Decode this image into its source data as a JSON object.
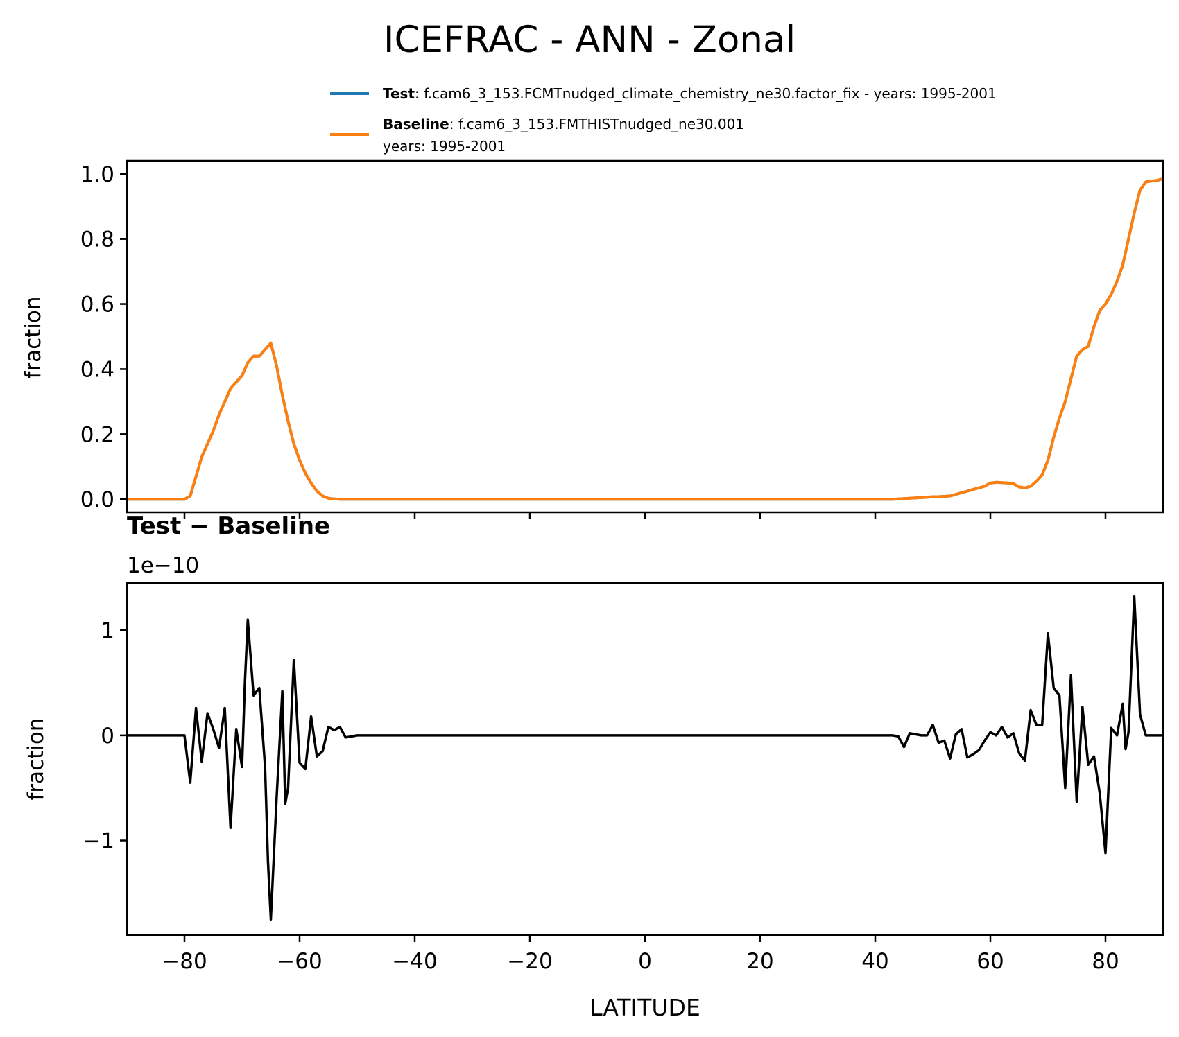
{
  "figure": {
    "title": "ICEFRAC - ANN - Zonal"
  },
  "legend": {
    "entries": [
      {
        "label_bold": "Test",
        "label_text": ": f.cam6_3_153.FCMTnudged_climate_chemistry_ne30.factor_fix - years: 1995-2001",
        "label_text2": "",
        "color": "#1f77b4"
      },
      {
        "label_bold": "Baseline",
        "label_text": ": f.cam6_3_153.FMTHISTnudged_ne30.001",
        "label_text2": "years: 1995-2001",
        "color": "#ff7f0e"
      }
    ]
  },
  "chart_data": [
    {
      "type": "line",
      "ylabel": "fraction",
      "xlabel": "",
      "xlim": [
        -90,
        90
      ],
      "ylim": [
        -0.04,
        1.04
      ],
      "xticks": [
        -80,
        -60,
        -40,
        -20,
        0,
        20,
        40,
        60,
        80
      ],
      "yticks": [
        0.0,
        0.2,
        0.4,
        0.6,
        0.8,
        1.0
      ],
      "ytick_labels": [
        "0.0",
        "0.2",
        "0.4",
        "0.6",
        "0.8",
        "1.0"
      ],
      "series": [
        {
          "name": "Test",
          "color": "#1f77b4",
          "x": [
            -90,
            -85,
            -80,
            -79,
            -78,
            -77,
            -76,
            -75,
            -74,
            -73,
            -72,
            -71,
            -70,
            -69,
            -68,
            -67,
            -66,
            -65.5,
            -65,
            -64,
            -63,
            -62,
            -61,
            -60,
            -59,
            -58,
            -57,
            -56,
            -55,
            -54,
            -53,
            -50,
            -40,
            -30,
            -20,
            -10,
            0,
            10,
            20,
            30,
            40,
            43,
            45,
            47,
            49,
            50,
            51,
            52,
            53,
            54,
            55,
            56,
            57,
            58,
            59,
            60,
            61,
            62,
            63,
            64,
            65,
            66,
            67,
            68,
            69,
            70,
            71,
            72,
            73,
            74,
            75,
            76,
            77,
            78,
            79,
            80,
            81,
            82,
            83,
            84,
            85,
            86,
            87,
            88,
            89,
            90
          ],
          "values": [
            0,
            0,
            0,
            0.01,
            0.07,
            0.13,
            0.17,
            0.21,
            0.26,
            0.3,
            0.34,
            0.36,
            0.38,
            0.42,
            0.44,
            0.44,
            0.46,
            0.47,
            0.48,
            0.41,
            0.32,
            0.24,
            0.17,
            0.12,
            0.08,
            0.05,
            0.025,
            0.01,
            0.003,
            0.001,
            0,
            0,
            0,
            0,
            0,
            0,
            0,
            0,
            0,
            0,
            0,
            0,
            0.002,
            0.004,
            0.006,
            0.008,
            0.008,
            0.009,
            0.01,
            0.015,
            0.02,
            0.025,
            0.03,
            0.035,
            0.04,
            0.05,
            0.052,
            0.051,
            0.05,
            0.048,
            0.038,
            0.035,
            0.04,
            0.055,
            0.075,
            0.12,
            0.19,
            0.25,
            0.3,
            0.37,
            0.44,
            0.46,
            0.47,
            0.53,
            0.58,
            0.6,
            0.63,
            0.67,
            0.72,
            0.8,
            0.88,
            0.95,
            0.975,
            0.978,
            0.98,
            0.985
          ]
        },
        {
          "name": "Baseline",
          "color": "#ff7f0e",
          "x": [
            -90,
            -85,
            -80,
            -79,
            -78,
            -77,
            -76,
            -75,
            -74,
            -73,
            -72,
            -71,
            -70,
            -69,
            -68,
            -67,
            -66,
            -65.5,
            -65,
            -64,
            -63,
            -62,
            -61,
            -60,
            -59,
            -58,
            -57,
            -56,
            -55,
            -54,
            -53,
            -50,
            -40,
            -30,
            -20,
            -10,
            0,
            10,
            20,
            30,
            40,
            43,
            45,
            47,
            49,
            50,
            51,
            52,
            53,
            54,
            55,
            56,
            57,
            58,
            59,
            60,
            61,
            62,
            63,
            64,
            65,
            66,
            67,
            68,
            69,
            70,
            71,
            72,
            73,
            74,
            75,
            76,
            77,
            78,
            79,
            80,
            81,
            82,
            83,
            84,
            85,
            86,
            87,
            88,
            89,
            90
          ],
          "values": [
            0,
            0,
            0,
            0.01,
            0.07,
            0.13,
            0.17,
            0.21,
            0.26,
            0.3,
            0.34,
            0.36,
            0.38,
            0.42,
            0.44,
            0.44,
            0.46,
            0.47,
            0.48,
            0.41,
            0.32,
            0.24,
            0.17,
            0.12,
            0.08,
            0.05,
            0.025,
            0.01,
            0.003,
            0.001,
            0,
            0,
            0,
            0,
            0,
            0,
            0,
            0,
            0,
            0,
            0,
            0,
            0.002,
            0.004,
            0.006,
            0.008,
            0.008,
            0.009,
            0.01,
            0.015,
            0.02,
            0.025,
            0.03,
            0.035,
            0.04,
            0.05,
            0.052,
            0.051,
            0.05,
            0.048,
            0.038,
            0.035,
            0.04,
            0.055,
            0.075,
            0.12,
            0.19,
            0.25,
            0.3,
            0.37,
            0.44,
            0.46,
            0.47,
            0.53,
            0.58,
            0.6,
            0.63,
            0.67,
            0.72,
            0.8,
            0.88,
            0.95,
            0.975,
            0.978,
            0.98,
            0.985
          ]
        }
      ]
    },
    {
      "type": "line",
      "title": "Test − Baseline",
      "offset_label": "1e−10",
      "ylabel": "fraction",
      "xlabel": "LATITUDE",
      "xlim": [
        -90,
        90
      ],
      "ylim": [
        -1.9,
        1.45
      ],
      "xticks": [
        -80,
        -60,
        -40,
        -20,
        0,
        20,
        40,
        60,
        80
      ],
      "xtick_labels": [
        "−80",
        "−60",
        "−40",
        "−20",
        "0",
        "20",
        "40",
        "60",
        "80"
      ],
      "yticks": [
        -1,
        0,
        1
      ],
      "ytick_labels": [
        "−1",
        "0",
        "1"
      ],
      "series": [
        {
          "name": "Test − Baseline",
          "color": "#000000",
          "x": [
            -90,
            -80,
            -79,
            -78,
            -77,
            -76,
            -75,
            -74,
            -73,
            -72,
            -71,
            -70,
            -69.5,
            -69,
            -68,
            -67,
            -66,
            -65.5,
            -65,
            -64,
            -63,
            -62.5,
            -62,
            -61,
            -60,
            -59,
            -58,
            -57,
            -56,
            -55,
            -54,
            -53,
            -52,
            -50,
            -40,
            -20,
            0,
            20,
            40,
            43,
            44,
            45,
            46,
            47,
            48,
            49,
            50,
            51,
            52,
            53,
            54,
            55,
            56,
            57,
            58,
            59,
            60,
            61,
            62,
            63,
            64,
            65,
            66,
            67,
            68,
            69,
            70,
            71,
            72,
            73,
            74,
            75,
            76,
            77,
            78,
            79,
            80,
            81,
            82,
            83,
            83.5,
            84,
            85,
            86,
            87,
            88,
            89,
            90
          ],
          "values": [
            0,
            0,
            -0.45,
            0.26,
            -0.25,
            0.21,
            0.06,
            -0.12,
            0.26,
            -0.88,
            0.06,
            -0.3,
            0.5,
            1.1,
            0.38,
            0.45,
            -0.3,
            -1.2,
            -1.75,
            -0.6,
            0.42,
            -0.65,
            -0.5,
            0.72,
            -0.26,
            -0.32,
            0.18,
            -0.2,
            -0.15,
            0.08,
            0.05,
            0.08,
            -0.02,
            0,
            0,
            0,
            0,
            0,
            0,
            0,
            -0.01,
            -0.11,
            0.02,
            0.01,
            0,
            0,
            0.1,
            -0.07,
            -0.05,
            -0.22,
            0.01,
            0.06,
            -0.21,
            -0.18,
            -0.14,
            -0.05,
            0.03,
            0,
            0.08,
            -0.02,
            0.02,
            -0.17,
            -0.24,
            0.24,
            0.1,
            0.1,
            0.97,
            0.45,
            0.38,
            -0.5,
            0.57,
            -0.63,
            0.27,
            -0.28,
            -0.2,
            -0.55,
            -1.12,
            0.07,
            0,
            0.3,
            -0.13,
            0.03,
            1.32,
            0.2,
            0,
            0,
            0,
            0
          ]
        }
      ]
    }
  ]
}
